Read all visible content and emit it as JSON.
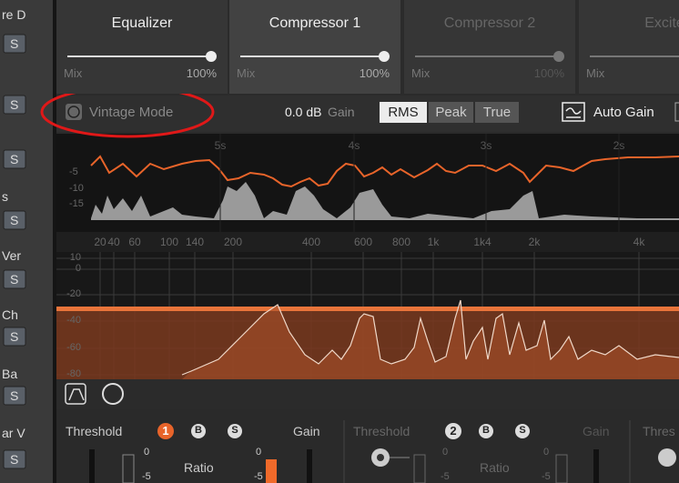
{
  "tracks": {
    "labels": [
      "re D",
      "s",
      "Ver",
      "Ch",
      "Ba",
      "ar V"
    ],
    "solo": "S"
  },
  "tabs": [
    {
      "name": "Equalizer",
      "mix": "Mix",
      "amount": "100%"
    },
    {
      "name": "Compressor 1",
      "mix": "Mix",
      "amount": "100%"
    },
    {
      "name": "Compressor 2",
      "mix": "Mix",
      "amount": "100%"
    },
    {
      "name": "Excite",
      "mix": "Mix"
    }
  ],
  "toolbar": {
    "vintage": "Vintage Mode",
    "gain_value": "0.0 dB",
    "gain_label": "Gain",
    "modes": [
      "RMS",
      "Peak",
      "True"
    ],
    "auto_gain": "Auto Gain"
  },
  "time_graph": {
    "time_labels": [
      "5s",
      "4s",
      "3s",
      "2s"
    ],
    "level_labels": [
      "-5",
      "-10",
      "-15"
    ]
  },
  "spectrum": {
    "freq_labels": [
      "20",
      "40",
      "60",
      "100",
      "140",
      "200",
      "400",
      "600",
      "800",
      "1k",
      "1k4",
      "2k",
      "4k"
    ],
    "level_labels": [
      "10",
      "0",
      "-20",
      "-40",
      "-60",
      "-80"
    ]
  },
  "bands": [
    {
      "threshold": "Threshold",
      "number": "1",
      "bypass": "B",
      "solo": "S",
      "gain": "Gain",
      "ratio": "Ratio",
      "scale": [
        "0",
        "-5"
      ],
      "meter_scale": [
        "0",
        "-5"
      ]
    },
    {
      "threshold": "Threshold",
      "number": "2",
      "bypass": "B",
      "solo": "S",
      "gain": "Gain",
      "ratio": "Ratio",
      "scale": [
        "0",
        "-5"
      ],
      "meter_scale": [
        "0",
        "-5"
      ]
    },
    {
      "threshold": "Thres"
    }
  ]
}
